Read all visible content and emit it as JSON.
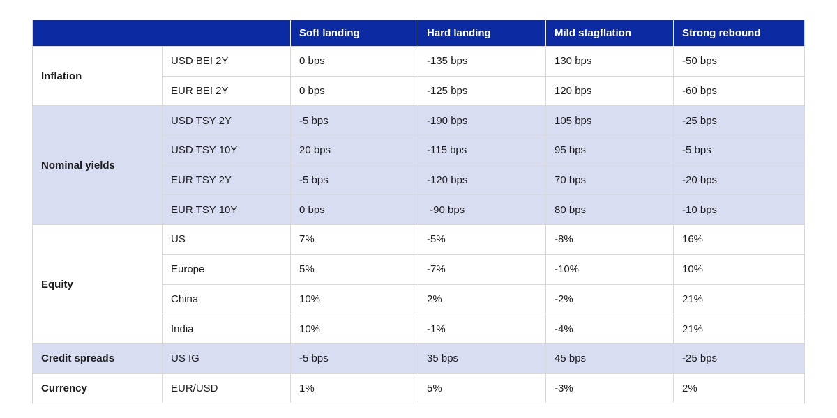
{
  "colors": {
    "header_bg": "#0c2aa2",
    "header_text": "#ffffff",
    "shaded_row_bg": "#d9ddf2",
    "border": "#d9d9d9",
    "text": "#1d1d1f",
    "page_bg": "#ffffff"
  },
  "header": {
    "corner_label": "",
    "scenarios": [
      "Soft landing",
      "Hard landing",
      "Mild stagflation",
      "Strong rebound"
    ]
  },
  "groups": [
    {
      "label": "Inflation",
      "shaded": false,
      "rows": [
        {
          "instrument": "USD BEI 2Y",
          "values": [
            "0 bps",
            "-135 bps",
            "130 bps",
            "-50 bps"
          ]
        },
        {
          "instrument": "EUR BEI 2Y",
          "values": [
            "0 bps",
            "-125 bps",
            "120 bps",
            "-60 bps"
          ]
        }
      ]
    },
    {
      "label": "Nominal yields",
      "shaded": true,
      "rows": [
        {
          "instrument": "USD TSY 2Y",
          "values": [
            "-5 bps",
            "-190 bps",
            "105 bps",
            "-25 bps"
          ]
        },
        {
          "instrument": "USD TSY 10Y",
          "values": [
            "20 bps",
            "-115 bps",
            "95 bps",
            "-5 bps"
          ]
        },
        {
          "instrument": "EUR TSY 2Y",
          "values": [
            "-5 bps",
            "-120 bps",
            "70 bps",
            "-20 bps"
          ]
        },
        {
          "instrument": "EUR TSY 10Y",
          "values": [
            "0 bps",
            " -90 bps",
            "80 bps",
            "-10 bps"
          ]
        }
      ]
    },
    {
      "label": "Equity",
      "shaded": false,
      "rows": [
        {
          "instrument": "US",
          "values": [
            "7%",
            "-5%",
            "-8%",
            "16%"
          ]
        },
        {
          "instrument": "Europe",
          "values": [
            "5%",
            "-7%",
            "-10%",
            "10%"
          ]
        },
        {
          "instrument": "China",
          "values": [
            "10%",
            "2%",
            "-2%",
            "21%"
          ]
        },
        {
          "instrument": "India",
          "values": [
            "10%",
            "-1%",
            "-4%",
            "21%"
          ]
        }
      ]
    },
    {
      "label": "Credit spreads",
      "shaded": true,
      "rows": [
        {
          "instrument": "US IG",
          "values": [
            "-5 bps",
            "35 bps",
            "45 bps",
            "-25 bps"
          ]
        }
      ]
    },
    {
      "label": "Currency",
      "shaded": false,
      "rows": [
        {
          "instrument": "EUR/USD",
          "values": [
            "1%",
            "5%",
            "-3%",
            "2%"
          ]
        }
      ]
    }
  ]
}
